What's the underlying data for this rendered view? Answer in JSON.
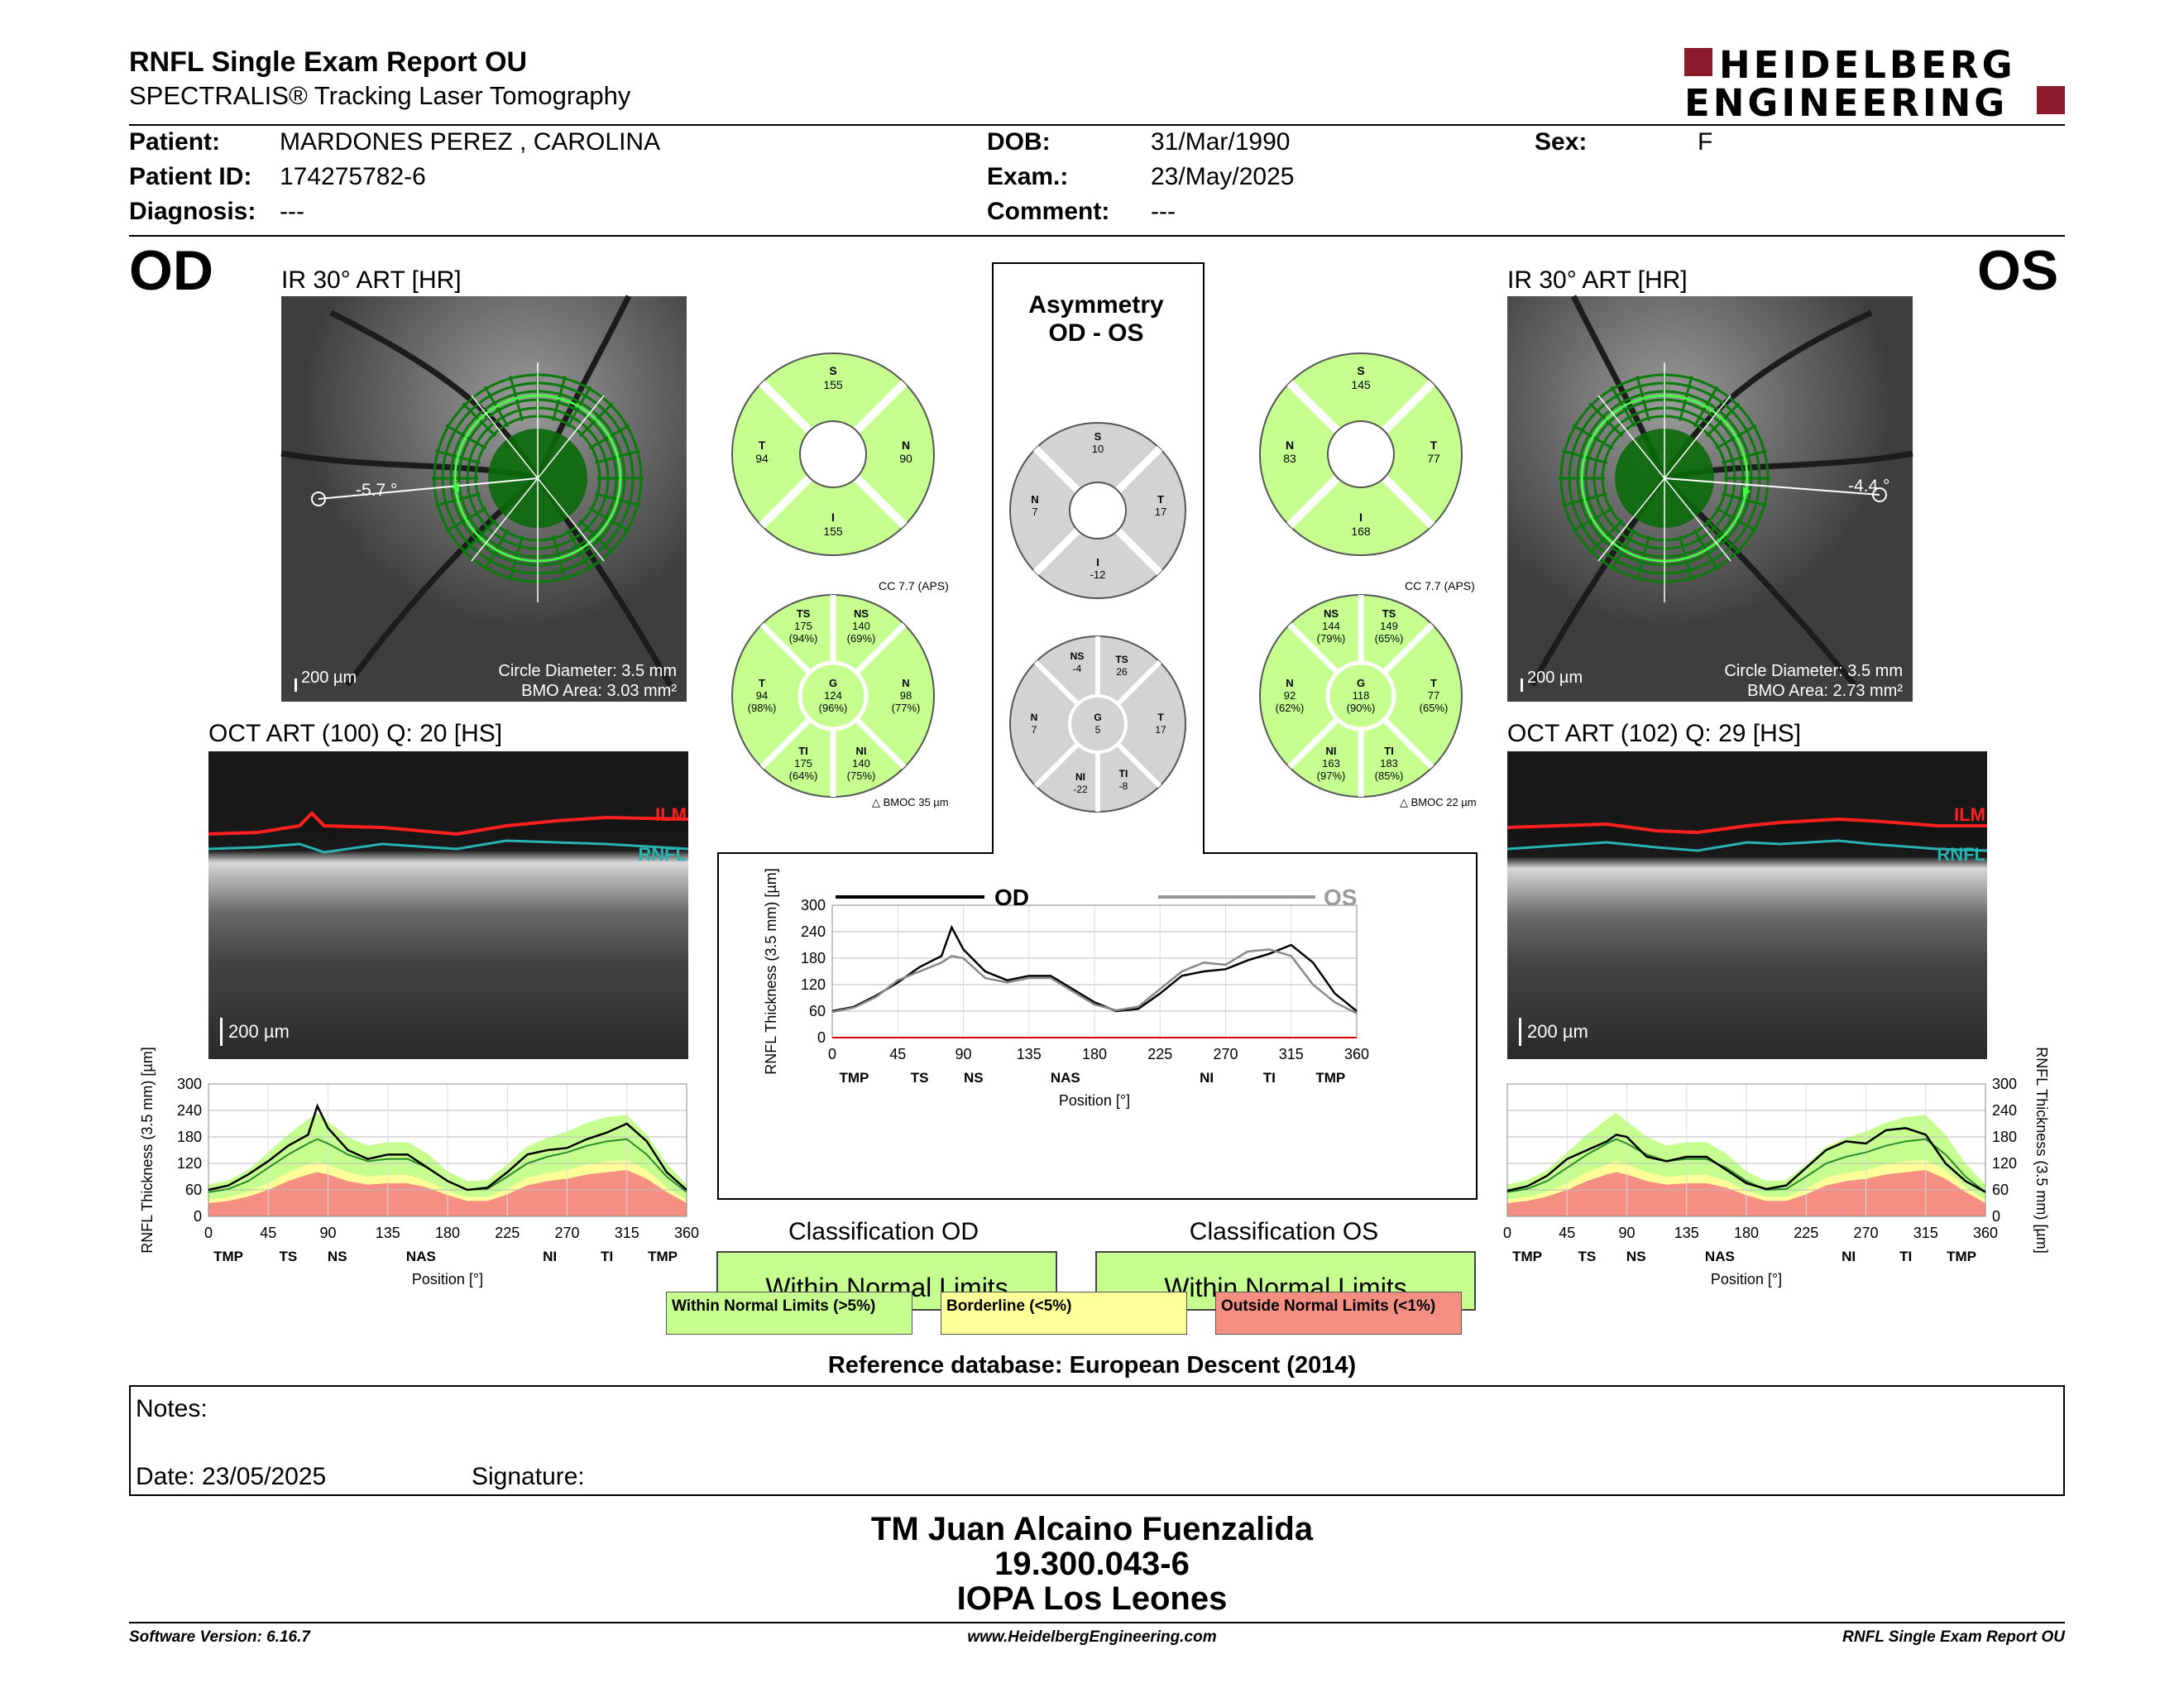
{
  "header": {
    "title": "RNFL Single Exam Report OU",
    "subtitle": "SPECTRALIS® Tracking Laser Tomography",
    "logo_line1": "HEIDELBERG",
    "logo_line2": "ENGINEERING"
  },
  "patient": {
    "patient_label": "Patient:",
    "patient_value": "MARDONES PEREZ , CAROLINA",
    "id_label": "Patient ID:",
    "id_value": "174275782-6",
    "diagnosis_label": "Diagnosis:",
    "diagnosis_value": "---",
    "dob_label": "DOB:",
    "dob_value": "31/Mar/1990",
    "exam_label": "Exam.:",
    "exam_value": "23/May/2025",
    "comment_label": "Comment:",
    "comment_value": "---",
    "sex_label": "Sex:",
    "sex_value": "F"
  },
  "od": {
    "eye": "OD",
    "ir_title": "IR 30° ART [HR]",
    "angle": "-5.7 °",
    "scale": "200 µm",
    "circle_diameter": "Circle Diameter: 3.5 mm",
    "bmo_area": "BMO Area: 3.03 mm²",
    "oct_title": "OCT ART (100) Q: 20 [HS]",
    "oct_scale": "200 µm",
    "ilm": "ILM",
    "rnfl": "RNFL",
    "cc": "CC 7.7 (APS)",
    "bmoc": "BMOC 35 µm",
    "sectors4": {
      "S": "155",
      "T": "94",
      "N": "90",
      "I": "155"
    },
    "sectors6": {
      "TS": "175",
      "TS_pct": "(94%)",
      "NS": "140",
      "NS_pct": "(69%)",
      "T": "94",
      "T_pct": "(98%)",
      "G": "124",
      "G_pct": "(96%)",
      "N": "98",
      "N_pct": "(77%)",
      "TI": "175",
      "TI_pct": "(64%)",
      "NI": "140",
      "NI_pct": "(75%)"
    },
    "classification_title": "Classification OD",
    "classification": "Within Normal Limits"
  },
  "os": {
    "eye": "OS",
    "ir_title": "IR 30° ART [HR]",
    "angle": "-4.4 °",
    "scale": "200 µm",
    "circle_diameter": "Circle Diameter: 3.5 mm",
    "bmo_area": "BMO Area: 2.73 mm²",
    "oct_title": "OCT ART (102) Q: 29 [HS]",
    "oct_scale": "200 µm",
    "ilm": "ILM",
    "rnfl": "RNFL",
    "cc": "CC 7.7 (APS)",
    "bmoc": "BMOC 22 µm",
    "sectors4": {
      "S": "145",
      "N": "83",
      "T": "77",
      "I": "168"
    },
    "sectors6": {
      "NS": "144",
      "NS_pct": "(79%)",
      "TS": "149",
      "TS_pct": "(65%)",
      "N": "92",
      "N_pct": "(62%)",
      "G": "118",
      "G_pct": "(90%)",
      "T": "77",
      "T_pct": "(65%)",
      "NI": "163",
      "NI_pct": "(97%)",
      "TI": "183",
      "TI_pct": "(85%)"
    },
    "classification_title": "Classification OS",
    "classification": "Within Normal Limits"
  },
  "asymmetry": {
    "title1": "Asymmetry",
    "title2": "OD - OS",
    "sectors4": {
      "S": "10",
      "N": "7",
      "T": "17",
      "I": "-12"
    },
    "sectors6": {
      "NS": "-4",
      "TS": "26",
      "N": "7",
      "G": "5",
      "T": "17",
      "NI": "-22",
      "TI": "-8"
    },
    "legend_od": "OD",
    "legend_os": "OS"
  },
  "legend": {
    "wnl": "Within Normal Limits (>5%)",
    "bl": "Borderline (<5%)",
    "onl": "Outside Normal Limits (<1%)",
    "wnl_color": "#c6ff90",
    "bl_color": "#ffff99",
    "onl_color": "#f58f84"
  },
  "reference": "Reference database: European Descent (2014)",
  "notes": {
    "notes_label": "Notes:",
    "date": "Date: 23/05/2025",
    "signature": "Signature:"
  },
  "sign": {
    "name": "TM Juan Alcaino Fuenzalida",
    "rut": "19.300.043-6",
    "place": "IOPA Los Leones"
  },
  "footer": {
    "version": "Software Version: 6.16.7",
    "url": "www.HeidelbergEngineering.com",
    "report": "RNFL Single Exam Report OU"
  },
  "chart_data": [
    {
      "type": "line",
      "title": "",
      "xlabel": "Position [°]",
      "ylabel": "RNFL Thickness (3.5 mm) [µm]",
      "xlim": [
        0,
        360
      ],
      "ylim": [
        0,
        300
      ],
      "xticks": [
        "0",
        "45",
        "90",
        "135",
        "180",
        "225",
        "270",
        "315",
        "360"
      ],
      "yticks": [
        "0",
        "60",
        "120",
        "180",
        "240",
        "300"
      ],
      "region_labels": [
        "TMP",
        "TS",
        "NS",
        "NAS",
        "NI",
        "TI",
        "TMP"
      ],
      "region_positions": [
        0,
        30,
        85,
        140,
        180,
        235,
        285,
        330,
        360
      ],
      "x": [
        0,
        15,
        30,
        45,
        60,
        75,
        82,
        90,
        105,
        120,
        135,
        150,
        165,
        180,
        195,
        210,
        225,
        240,
        255,
        270,
        285,
        300,
        315,
        330,
        345,
        360
      ],
      "series": [
        {
          "name": "OD",
          "values": [
            60,
            70,
            95,
            125,
            160,
            185,
            250,
            200,
            150,
            130,
            140,
            140,
            110,
            80,
            60,
            65,
            100,
            140,
            150,
            155,
            175,
            190,
            210,
            170,
            100,
            60
          ]
        }
      ],
      "normal_median": [
        55,
        62,
        80,
        110,
        140,
        165,
        175,
        165,
        140,
        125,
        130,
        130,
        110,
        80,
        60,
        62,
        90,
        120,
        135,
        145,
        160,
        170,
        175,
        140,
        90,
        55
      ],
      "band_p1": [
        30,
        35,
        45,
        60,
        80,
        95,
        100,
        95,
        80,
        72,
        75,
        75,
        65,
        48,
        35,
        35,
        50,
        70,
        80,
        85,
        95,
        100,
        105,
        85,
        55,
        30
      ],
      "band_p5": [
        38,
        44,
        56,
        75,
        100,
        118,
        125,
        118,
        100,
        90,
        94,
        94,
        80,
        58,
        44,
        44,
        62,
        88,
        98,
        105,
        118,
        125,
        128,
        105,
        66,
        38
      ],
      "band_p95": [
        72,
        82,
        105,
        145,
        185,
        220,
        235,
        215,
        180,
        160,
        168,
        168,
        142,
        102,
        80,
        82,
        118,
        158,
        178,
        192,
        212,
        225,
        230,
        185,
        120,
        72
      ]
    },
    {
      "type": "line",
      "title": "",
      "xlabel": "Position [°]",
      "ylabel": "RNFL Thickness (3.5 mm) [µm]",
      "xlim": [
        0,
        360
      ],
      "ylim": [
        0,
        300
      ],
      "xticks": [
        "0",
        "45",
        "90",
        "135",
        "180",
        "225",
        "270",
        "315",
        "360"
      ],
      "yticks": [
        "0",
        "60",
        "120",
        "180",
        "240",
        "300"
      ],
      "region_labels": [
        "TMP",
        "TS",
        "NS",
        "NAS",
        "NI",
        "TI",
        "TMP"
      ],
      "region_positions": [
        0,
        30,
        85,
        140,
        180,
        235,
        285,
        330,
        360
      ],
      "x": [
        0,
        15,
        30,
        45,
        60,
        75,
        82,
        90,
        105,
        120,
        135,
        150,
        165,
        180,
        195,
        210,
        225,
        240,
        255,
        270,
        285,
        300,
        315,
        330,
        345,
        360
      ],
      "series": [
        {
          "name": "OD",
          "values": [
            60,
            70,
            95,
            125,
            160,
            185,
            250,
            200,
            150,
            130,
            140,
            140,
            110,
            80,
            60,
            65,
            100,
            140,
            150,
            155,
            175,
            190,
            210,
            170,
            100,
            60
          ]
        },
        {
          "name": "OS",
          "values": [
            58,
            68,
            92,
            130,
            150,
            170,
            185,
            180,
            135,
            125,
            135,
            135,
            105,
            75,
            62,
            70,
            110,
            150,
            170,
            165,
            195,
            200,
            185,
            120,
            80,
            55
          ]
        }
      ]
    },
    {
      "type": "line",
      "title": "",
      "xlabel": "Position [°]",
      "ylabel": "RNFL Thickness (3.5 mm) [µm]",
      "xlim": [
        0,
        360
      ],
      "ylim": [
        0,
        300
      ],
      "xticks": [
        "0",
        "45",
        "90",
        "135",
        "180",
        "225",
        "270",
        "315",
        "360"
      ],
      "yticks": [
        "0",
        "60",
        "120",
        "180",
        "240",
        "300"
      ],
      "region_labels": [
        "TMP",
        "TS",
        "NS",
        "NAS",
        "NI",
        "TI",
        "TMP"
      ],
      "region_positions": [
        0,
        30,
        85,
        140,
        180,
        235,
        285,
        330,
        360
      ],
      "x": [
        0,
        15,
        30,
        45,
        60,
        75,
        82,
        90,
        105,
        120,
        135,
        150,
        165,
        180,
        195,
        210,
        225,
        240,
        255,
        270,
        285,
        300,
        315,
        330,
        345,
        360
      ],
      "series": [
        {
          "name": "OS",
          "values": [
            58,
            68,
            92,
            130,
            150,
            170,
            185,
            180,
            135,
            125,
            135,
            135,
            105,
            75,
            62,
            70,
            110,
            150,
            170,
            165,
            195,
            200,
            185,
            120,
            80,
            55
          ]
        }
      ],
      "normal_median": [
        55,
        62,
        80,
        110,
        140,
        165,
        175,
        165,
        140,
        125,
        130,
        130,
        110,
        80,
        60,
        62,
        90,
        120,
        135,
        145,
        160,
        170,
        175,
        140,
        90,
        55
      ],
      "band_p1": [
        30,
        35,
        45,
        60,
        80,
        95,
        100,
        95,
        80,
        72,
        75,
        75,
        65,
        48,
        35,
        35,
        50,
        70,
        80,
        85,
        95,
        100,
        105,
        85,
        55,
        30
      ],
      "band_p5": [
        38,
        44,
        56,
        75,
        100,
        118,
        125,
        118,
        100,
        90,
        94,
        94,
        80,
        58,
        44,
        44,
        62,
        88,
        98,
        105,
        118,
        125,
        128,
        105,
        66,
        38
      ],
      "band_p95": [
        72,
        82,
        105,
        145,
        185,
        220,
        235,
        215,
        180,
        160,
        168,
        168,
        142,
        102,
        80,
        82,
        118,
        158,
        178,
        192,
        212,
        225,
        230,
        185,
        120,
        72
      ]
    }
  ]
}
